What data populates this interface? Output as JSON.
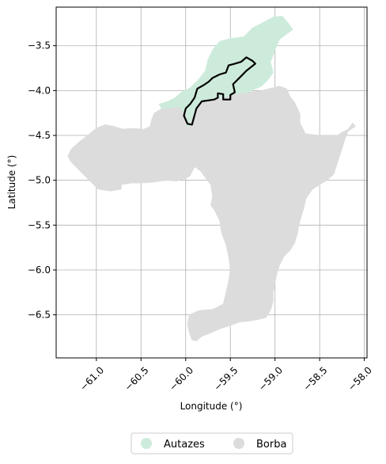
{
  "chart_data": {
    "type": "map",
    "xlabel": "Longitude (°)",
    "ylabel": "Latitude (°)",
    "xlim": [
      -61.45,
      -57.97
    ],
    "ylim": [
      -6.98,
      -3.07
    ],
    "grid": true,
    "x_ticks": [
      {
        "value": -61.0,
        "label": "−61.0"
      },
      {
        "value": -60.5,
        "label": "−60.5"
      },
      {
        "value": -60.0,
        "label": "−60.0"
      },
      {
        "value": -59.5,
        "label": "−59.5"
      },
      {
        "value": -59.0,
        "label": "−59.0"
      },
      {
        "value": -58.5,
        "label": "−58.5"
      },
      {
        "value": -58.0,
        "label": "−58.0"
      }
    ],
    "y_ticks": [
      {
        "value": -3.5,
        "label": "−3.5"
      },
      {
        "value": -4.0,
        "label": "−4.0"
      },
      {
        "value": -4.5,
        "label": "−4.5"
      },
      {
        "value": -5.0,
        "label": "−5.0"
      },
      {
        "value": -5.5,
        "label": "−5.5"
      },
      {
        "value": -6.0,
        "label": "−6.0"
      },
      {
        "value": -6.5,
        "label": "−6.5"
      }
    ],
    "legend": {
      "placement": "bottom-center",
      "entries": [
        {
          "label": "Autazes",
          "color": "#cdebdb"
        },
        {
          "label": "Borba",
          "color": "#dcdcdc"
        }
      ]
    },
    "regions": [
      {
        "name": "Borba",
        "color": "#dcdcdc",
        "coords": [
          [
            -59.68,
            -4.1
          ],
          [
            -59.4,
            -4.03
          ],
          [
            -59.15,
            -4.0
          ],
          [
            -58.95,
            -3.95
          ],
          [
            -58.87,
            -3.98
          ],
          [
            -58.83,
            -4.07
          ],
          [
            -58.78,
            -4.13
          ],
          [
            -58.72,
            -4.26
          ],
          [
            -58.72,
            -4.36
          ],
          [
            -58.66,
            -4.48
          ],
          [
            -58.5,
            -4.5
          ],
          [
            -58.3,
            -4.5
          ],
          [
            -58.26,
            -4.47
          ],
          [
            -58.18,
            -4.43
          ],
          [
            -58.13,
            -4.36
          ],
          [
            -58.1,
            -4.4
          ],
          [
            -58.18,
            -4.45
          ],
          [
            -58.22,
            -4.55
          ],
          [
            -58.26,
            -4.68
          ],
          [
            -58.3,
            -4.8
          ],
          [
            -58.34,
            -4.93
          ],
          [
            -58.42,
            -5.0
          ],
          [
            -58.5,
            -5.05
          ],
          [
            -58.58,
            -5.1
          ],
          [
            -58.65,
            -5.2
          ],
          [
            -58.68,
            -5.32
          ],
          [
            -58.72,
            -5.45
          ],
          [
            -58.75,
            -5.6
          ],
          [
            -58.78,
            -5.7
          ],
          [
            -58.83,
            -5.78
          ],
          [
            -58.9,
            -5.85
          ],
          [
            -58.95,
            -5.95
          ],
          [
            -58.98,
            -6.05
          ],
          [
            -59.0,
            -6.15
          ],
          [
            -59.02,
            -6.25
          ],
          [
            -59.02,
            -6.35
          ],
          [
            -59.05,
            -6.45
          ],
          [
            -59.1,
            -6.53
          ],
          [
            -59.18,
            -6.55
          ],
          [
            -59.28,
            -6.57
          ],
          [
            -59.4,
            -6.58
          ],
          [
            -59.5,
            -6.62
          ],
          [
            -59.6,
            -6.65
          ],
          [
            -59.72,
            -6.7
          ],
          [
            -59.82,
            -6.74
          ],
          [
            -59.88,
            -6.79
          ],
          [
            -59.93,
            -6.78
          ],
          [
            -59.96,
            -6.7
          ],
          [
            -59.98,
            -6.6
          ],
          [
            -59.96,
            -6.5
          ],
          [
            -59.85,
            -6.45
          ],
          [
            -59.7,
            -6.44
          ],
          [
            -59.58,
            -6.38
          ],
          [
            -59.55,
            -6.25
          ],
          [
            -59.52,
            -6.12
          ],
          [
            -59.5,
            -6.0
          ],
          [
            -59.52,
            -5.85
          ],
          [
            -59.55,
            -5.72
          ],
          [
            -59.6,
            -5.58
          ],
          [
            -59.62,
            -5.45
          ],
          [
            -59.68,
            -5.33
          ],
          [
            -59.72,
            -5.28
          ],
          [
            -59.7,
            -5.18
          ],
          [
            -59.72,
            -5.05
          ],
          [
            -59.78,
            -4.97
          ],
          [
            -59.83,
            -4.9
          ],
          [
            -59.9,
            -4.85
          ],
          [
            -59.94,
            -4.8
          ],
          [
            -59.98,
            -4.72
          ],
          [
            -60.03,
            -4.65
          ],
          [
            -60.08,
            -4.58
          ],
          [
            -60.12,
            -4.52
          ],
          [
            -60.18,
            -4.47
          ],
          [
            -60.3,
            -4.42
          ],
          [
            -60.38,
            -4.32
          ],
          [
            -60.35,
            -4.25
          ],
          [
            -60.27,
            -4.2
          ],
          [
            -60.18,
            -4.2
          ],
          [
            -60.08,
            -4.18
          ],
          [
            -60.0,
            -4.26
          ],
          [
            -59.98,
            -4.33
          ],
          [
            -60.0,
            -4.39
          ],
          [
            -59.96,
            -4.4
          ],
          [
            -59.94,
            -4.32
          ],
          [
            -59.88,
            -4.2
          ],
          [
            -59.82,
            -4.13
          ]
        ]
      },
      {
        "name": "Borba",
        "color": "#dcdcdc",
        "coords": [
          [
            -60.38,
            -4.32
          ],
          [
            -60.4,
            -4.4
          ],
          [
            -60.47,
            -4.43
          ],
          [
            -60.6,
            -4.42
          ],
          [
            -60.7,
            -4.43
          ],
          [
            -60.8,
            -4.4
          ],
          [
            -60.9,
            -4.38
          ],
          [
            -61.0,
            -4.42
          ],
          [
            -61.1,
            -4.5
          ],
          [
            -61.2,
            -4.58
          ],
          [
            -61.28,
            -4.65
          ],
          [
            -61.32,
            -4.73
          ],
          [
            -61.28,
            -4.8
          ],
          [
            -61.18,
            -4.9
          ],
          [
            -61.08,
            -5.0
          ],
          [
            -60.98,
            -5.1
          ],
          [
            -60.84,
            -5.12
          ],
          [
            -60.72,
            -5.1
          ],
          [
            -60.72,
            -5.05
          ],
          [
            -60.6,
            -5.03
          ],
          [
            -60.48,
            -5.03
          ],
          [
            -60.35,
            -5.02
          ],
          [
            -60.22,
            -5.0
          ],
          [
            -60.1,
            -5.01
          ],
          [
            -60.0,
            -4.98
          ],
          [
            -59.95,
            -4.95
          ],
          [
            -59.9,
            -4.85
          ],
          [
            -59.94,
            -4.8
          ],
          [
            -59.98,
            -4.72
          ],
          [
            -60.03,
            -4.65
          ],
          [
            -60.08,
            -4.58
          ],
          [
            -60.12,
            -4.52
          ],
          [
            -60.18,
            -4.47
          ],
          [
            -60.3,
            -4.42
          ]
        ]
      },
      {
        "name": "Autazes",
        "color": "#cdebdb",
        "coords": [
          [
            -59.7,
            -3.55
          ],
          [
            -59.62,
            -3.45
          ],
          [
            -59.5,
            -3.42
          ],
          [
            -59.35,
            -3.4
          ],
          [
            -59.25,
            -3.3
          ],
          [
            -59.15,
            -3.25
          ],
          [
            -59.02,
            -3.18
          ],
          [
            -58.92,
            -3.17
          ],
          [
            -58.85,
            -3.25
          ],
          [
            -58.8,
            -3.32
          ],
          [
            -58.87,
            -3.37
          ],
          [
            -58.95,
            -3.43
          ],
          [
            -59.0,
            -3.55
          ],
          [
            -59.05,
            -3.68
          ],
          [
            -59.02,
            -3.8
          ],
          [
            -59.08,
            -3.88
          ],
          [
            -59.15,
            -3.95
          ],
          [
            -59.3,
            -4.02
          ],
          [
            -59.4,
            -4.03
          ],
          [
            -59.55,
            -4.07
          ],
          [
            -59.68,
            -4.1
          ],
          [
            -59.82,
            -4.13
          ],
          [
            -59.88,
            -4.2
          ],
          [
            -59.94,
            -4.32
          ],
          [
            -59.96,
            -4.4
          ],
          [
            -60.0,
            -4.39
          ],
          [
            -59.98,
            -4.33
          ],
          [
            -60.0,
            -4.26
          ],
          [
            -60.08,
            -4.18
          ],
          [
            -60.18,
            -4.2
          ],
          [
            -60.27,
            -4.2
          ],
          [
            -60.3,
            -4.15
          ],
          [
            -60.2,
            -4.12
          ],
          [
            -60.12,
            -4.08
          ],
          [
            -60.05,
            -4.02
          ],
          [
            -59.95,
            -3.97
          ],
          [
            -59.85,
            -3.87
          ],
          [
            -59.78,
            -3.78
          ],
          [
            -59.75,
            -3.65
          ]
        ]
      }
    ],
    "outline": {
      "color": "#000000",
      "coords": [
        [
          -60.02,
          -4.28
        ],
        [
          -59.98,
          -4.37
        ],
        [
          -59.93,
          -4.38
        ],
        [
          -59.88,
          -4.2
        ],
        [
          -59.82,
          -4.12
        ],
        [
          -59.68,
          -4.1
        ],
        [
          -59.64,
          -4.08
        ],
        [
          -59.64,
          -4.03
        ],
        [
          -59.58,
          -4.04
        ],
        [
          -59.58,
          -4.1
        ],
        [
          -59.5,
          -4.1
        ],
        [
          -59.5,
          -4.05
        ],
        [
          -59.45,
          -4.02
        ],
        [
          -59.47,
          -3.93
        ],
        [
          -59.42,
          -3.88
        ],
        [
          -59.38,
          -3.84
        ],
        [
          -59.32,
          -3.78
        ],
        [
          -59.22,
          -3.7
        ],
        [
          -59.25,
          -3.67
        ],
        [
          -59.32,
          -3.63
        ],
        [
          -59.38,
          -3.68
        ],
        [
          -59.45,
          -3.7
        ],
        [
          -59.52,
          -3.72
        ],
        [
          -59.55,
          -3.8
        ],
        [
          -59.62,
          -3.82
        ],
        [
          -59.7,
          -3.86
        ],
        [
          -59.74,
          -3.9
        ],
        [
          -59.8,
          -3.94
        ],
        [
          -59.87,
          -3.98
        ],
        [
          -59.9,
          -4.08
        ],
        [
          -59.95,
          -4.15
        ],
        [
          -60.0,
          -4.2
        ]
      ]
    }
  }
}
